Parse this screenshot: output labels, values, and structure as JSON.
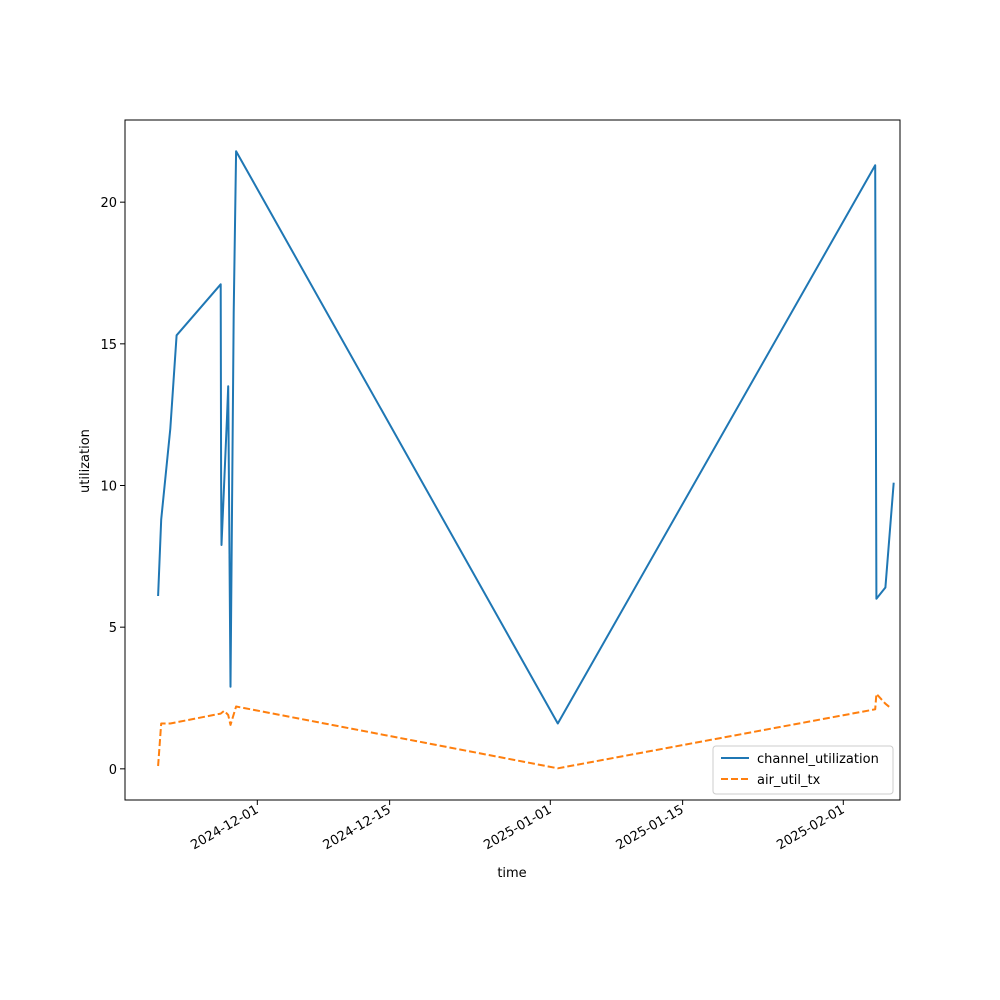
{
  "chart_data": {
    "type": "line",
    "xlabel": "time",
    "ylabel": "utilization",
    "x_is_date": true,
    "xlim": [
      "2024-11-17",
      "2025-02-07"
    ],
    "ylim": [
      -1.1,
      22.9
    ],
    "x_ticks": [
      "2024-12-01",
      "2024-12-15",
      "2025-01-01",
      "2025-01-15",
      "2025-02-01"
    ],
    "y_ticks": [
      0,
      5,
      10,
      15,
      20
    ],
    "legend_position": "lower-right",
    "series": [
      {
        "name": "channel_utilization",
        "color": "#1f77b4",
        "style": "solid",
        "points": [
          [
            "2024-11-20T12:00",
            6.1
          ],
          [
            "2024-11-20T20:00",
            8.8
          ],
          [
            "2024-11-21T19:00",
            12.0
          ],
          [
            "2024-11-22T11:00",
            15.3
          ],
          [
            "2024-11-27T03:00",
            17.1
          ],
          [
            "2024-11-27T04:00",
            10.3
          ],
          [
            "2024-11-27T05:00",
            7.9
          ],
          [
            "2024-11-27T19:00",
            12.4
          ],
          [
            "2024-11-27T22:00",
            13.5
          ],
          [
            "2024-11-28T04:00",
            2.9
          ],
          [
            "2024-11-28T12:00",
            16.1
          ],
          [
            "2024-11-28T18:00",
            21.8
          ],
          [
            "2025-01-01T19:00",
            1.6
          ],
          [
            "2025-02-04T09:00",
            21.3
          ],
          [
            "2025-02-04T12:00",
            6.0
          ],
          [
            "2025-02-05T11:00",
            6.4
          ],
          [
            "2025-02-06T08:00",
            10.1
          ]
        ]
      },
      {
        "name": "air_util_tx",
        "color": "#ff7f0e",
        "style": "dashed",
        "points": [
          [
            "2024-11-20T12:00",
            0.1
          ],
          [
            "2024-11-20T20:00",
            1.6
          ],
          [
            "2024-11-21T19:00",
            1.6
          ],
          [
            "2024-11-27T03:00",
            1.95
          ],
          [
            "2024-11-27T12:00",
            2.05
          ],
          [
            "2024-11-27T22:00",
            1.9
          ],
          [
            "2024-11-28T04:00",
            1.55
          ],
          [
            "2024-11-28T18:00",
            2.2
          ],
          [
            "2025-01-01T19:00",
            0.02
          ],
          [
            "2025-02-04T09:00",
            2.1
          ],
          [
            "2025-02-04T12:00",
            2.65
          ],
          [
            "2025-02-05T11:00",
            2.3
          ],
          [
            "2025-02-06T00:00",
            2.15
          ]
        ]
      }
    ]
  }
}
